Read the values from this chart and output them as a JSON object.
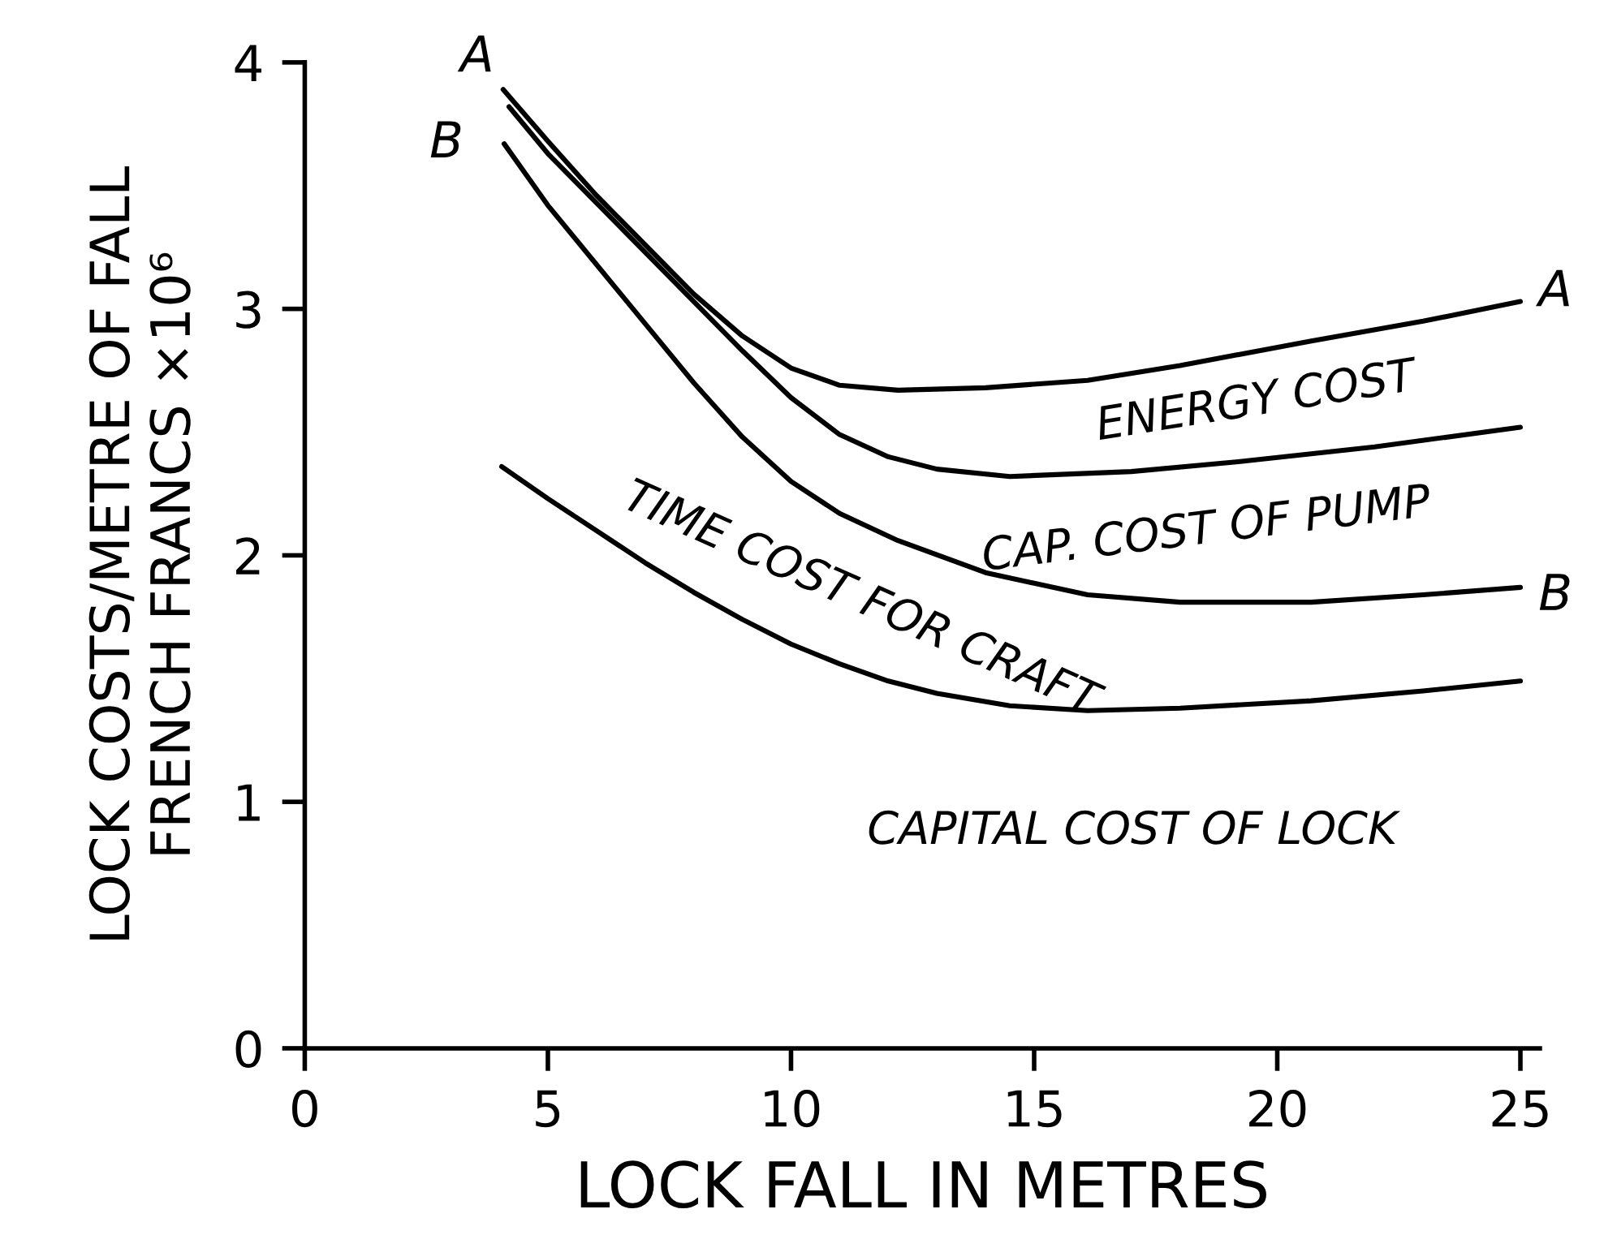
{
  "chart_data": {
    "type": "line",
    "xlabel": "LOCK FALL IN METRES",
    "ylabel": "LOCK COSTS/METRE OF FALL\nFRENCH FRANCS ×10⁶",
    "series": [
      {
        "color": "#000000",
        "x": [
          4.08,
          5,
          6,
          7,
          8,
          9,
          10,
          11,
          12.2,
          14,
          16.1,
          18,
          20.7,
          23,
          25.0
        ],
        "values": [
          3.89,
          3.68,
          3.46,
          3.26,
          3.06,
          2.89,
          2.76,
          2.69,
          2.67,
          2.68,
          2.71,
          2.77,
          2.87,
          2.95,
          3.03
        ]
      },
      {
        "color": "#000000",
        "x": [
          4.2,
          5,
          6,
          7,
          8,
          9,
          10,
          11,
          12,
          13,
          14.5,
          17,
          19.2,
          22,
          25.0
        ],
        "values": [
          3.82,
          3.63,
          3.43,
          3.23,
          3.03,
          2.83,
          2.64,
          2.49,
          2.4,
          2.35,
          2.32,
          2.34,
          2.38,
          2.44,
          2.52
        ]
      },
      {
        "color": "#000000",
        "x": [
          4.1,
          5,
          6,
          7,
          8,
          9,
          10,
          11,
          12.2,
          14,
          16.1,
          18,
          20.7,
          23,
          25.0
        ],
        "values": [
          3.67,
          3.42,
          3.18,
          2.94,
          2.7,
          2.48,
          2.3,
          2.17,
          2.06,
          1.93,
          1.84,
          1.81,
          1.81,
          1.84,
          1.87
        ]
      },
      {
        "color": "#000000",
        "x": [
          4.05,
          5,
          6,
          7,
          8,
          9,
          10,
          11,
          12,
          13,
          14.5,
          16.1,
          18,
          20.7,
          23,
          25.0
        ],
        "values": [
          2.36,
          2.23,
          2.1,
          1.97,
          1.85,
          1.74,
          1.64,
          1.56,
          1.49,
          1.44,
          1.39,
          1.37,
          1.38,
          1.41,
          1.45,
          1.49
        ]
      }
    ],
    "annotations": [
      {
        "text": "A",
        "x": 4.08,
        "y": 3.89
      },
      {
        "text": "B",
        "x": 4.1,
        "y": 3.67
      },
      {
        "text": "A",
        "x": 25.0,
        "y": 3.03
      },
      {
        "text": "B",
        "x": 25.0,
        "y": 1.87
      },
      "ENERGY COST",
      "CAP. COST OF PUMP",
      "TIME COST FOR CRAFT",
      "CAPITAL COST OF LOCK"
    ],
    "xlim": [
      0,
      25.4
    ],
    "ylim": [
      0,
      4
    ],
    "xticks": [
      0,
      5,
      10,
      15,
      20,
      25
    ],
    "yticks": [
      0,
      1,
      2,
      3,
      4
    ],
    "grid": false,
    "legend": false,
    "marker": "none",
    "line_style": "solid"
  }
}
